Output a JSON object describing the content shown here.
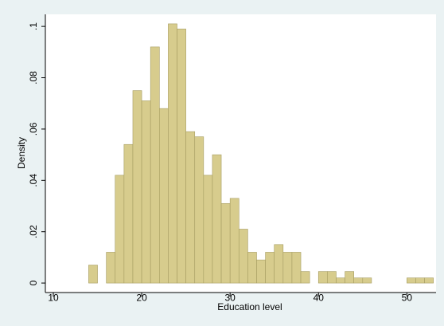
{
  "chart_data": {
    "type": "histogram",
    "xlabel": "Education level",
    "ylabel": "Density",
    "bins": [
      14,
      15,
      16,
      17,
      18,
      19,
      20,
      21,
      22,
      23,
      24,
      25,
      26,
      27,
      28,
      29,
      30,
      31,
      32,
      33,
      34,
      35,
      36,
      37,
      38,
      39,
      40,
      41,
      42,
      43,
      44,
      45,
      46,
      47,
      48,
      49,
      50,
      51,
      52,
      53
    ],
    "values": [
      0.007,
      0,
      0.012,
      0.042,
      0.054,
      0.075,
      0.071,
      0.092,
      0.068,
      0.101,
      0.099,
      0.059,
      0.057,
      0.042,
      0.05,
      0.031,
      0.033,
      0.021,
      0.012,
      0.009,
      0.012,
      0.015,
      0.012,
      0.012,
      0.0045,
      0,
      0.0045,
      0.0045,
      0.002,
      0.0045,
      0.002,
      0.002,
      0,
      0,
      0,
      0,
      0.002,
      0.002,
      0.002
    ],
    "color": "#d7cc8d",
    "xlim": [
      9.1,
      53.3
    ],
    "ylim": [
      -0.0037,
      0.1047
    ],
    "xticks": [
      10,
      20,
      30,
      40,
      50
    ],
    "yticks": [
      0,
      {
        "value": 0.02,
        "label": ".02"
      },
      {
        "value": 0.04,
        "label": ".04"
      },
      {
        "value": 0.06,
        "label": ".06"
      },
      {
        "value": 0.08,
        "label": ".08"
      },
      {
        "value": 0.1,
        "label": ".1"
      }
    ],
    "grid": false
  }
}
